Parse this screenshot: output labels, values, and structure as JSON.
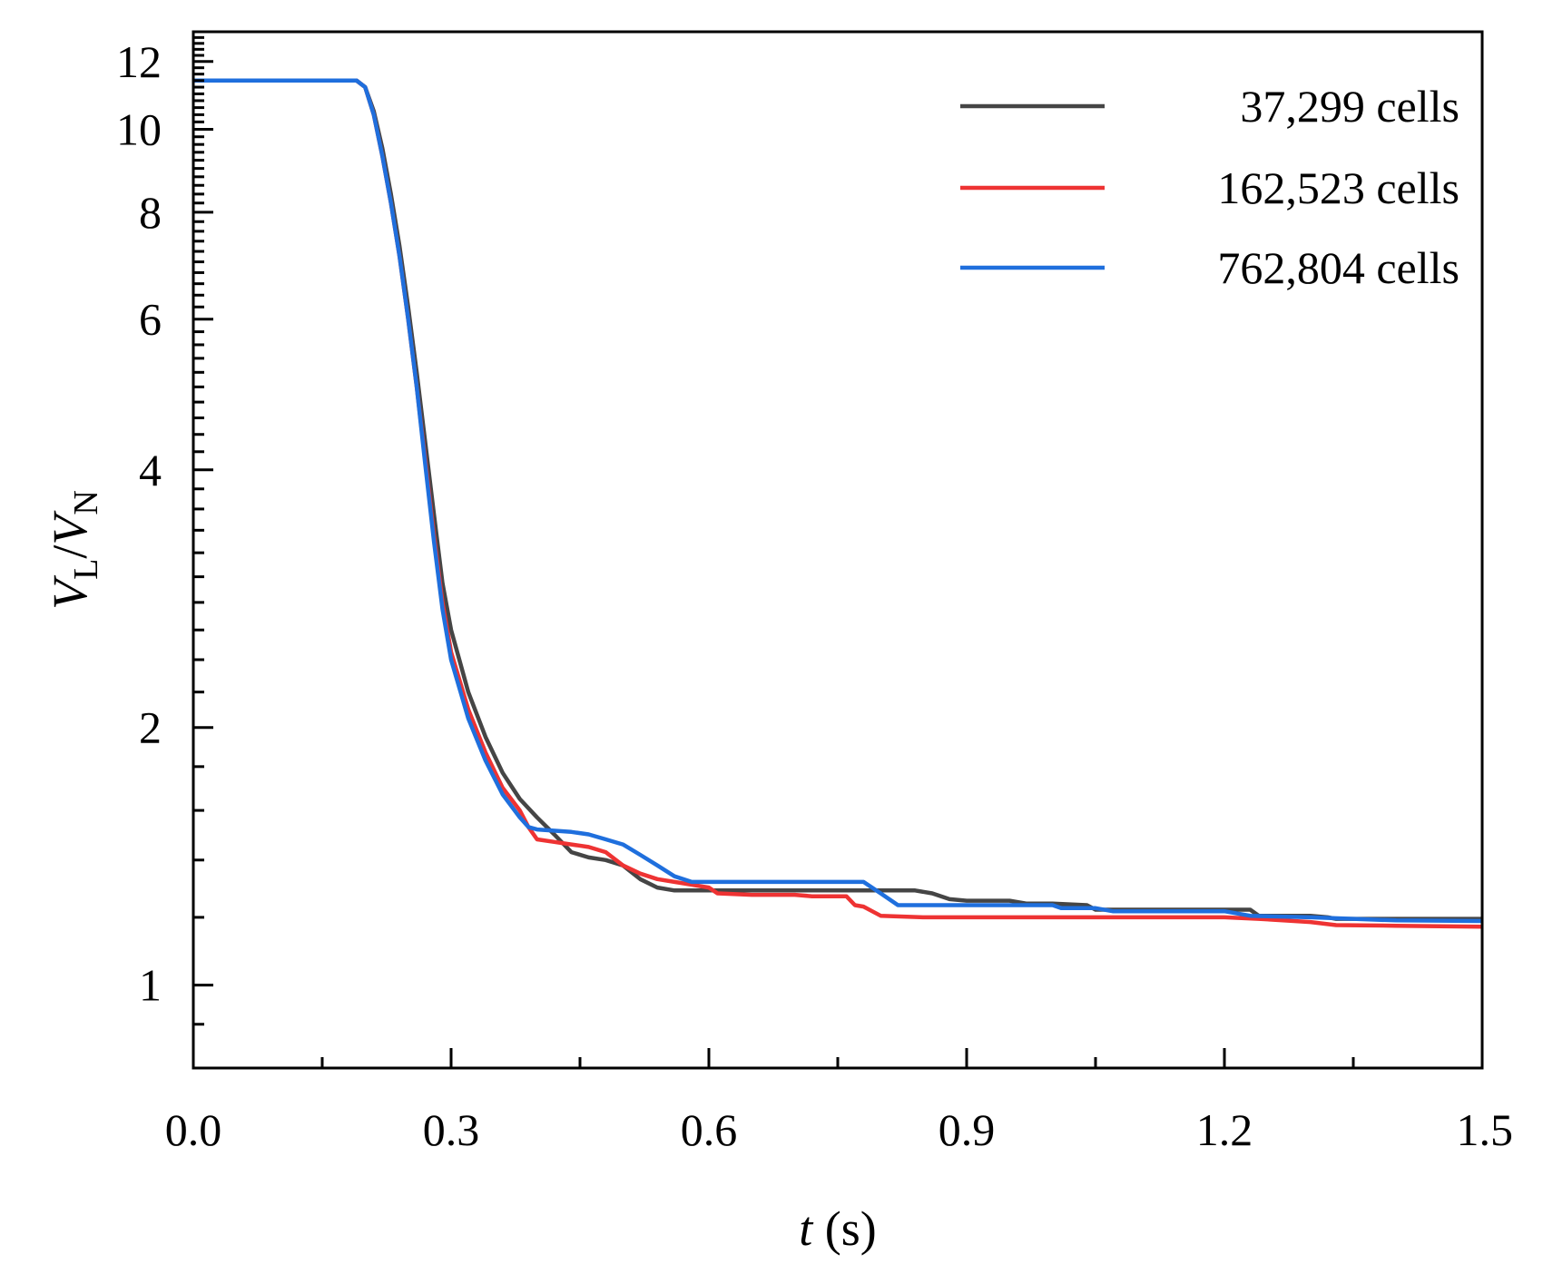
{
  "chart_data": {
    "type": "line",
    "title": "",
    "xlabel": {
      "var": "t",
      "unit": " (s)"
    },
    "ylabel": {
      "num": "V",
      "num_sub": "L",
      "sep": "/",
      "den": "V",
      "den_sub": "N"
    },
    "xlim": [
      0,
      1.5
    ],
    "ylim": [
      0.8,
      13
    ],
    "yscale": "log",
    "grid": false,
    "legend_position": "top-right",
    "x_ticks": [
      {
        "value": 0.0,
        "label": "0.0"
      },
      {
        "value": 0.3,
        "label": "0.3"
      },
      {
        "value": 0.6,
        "label": "0.6"
      },
      {
        "value": 0.9,
        "label": "0.9"
      },
      {
        "value": 1.2,
        "label": "1.2"
      },
      {
        "value": 1.5,
        "label": "1.5"
      }
    ],
    "x_minor_ticks": [
      0.15,
      0.45,
      0.75,
      1.05,
      1.35
    ],
    "y_ticks": [
      {
        "value": 1,
        "label": "1"
      },
      {
        "value": 2,
        "label": "2"
      },
      {
        "value": 4,
        "label": "4"
      },
      {
        "value": 6,
        "label": "6"
      },
      {
        "value": 8,
        "label": "8"
      },
      {
        "value": 10,
        "label": "10"
      },
      {
        "value": 12,
        "label": "12"
      }
    ],
    "y_minor_ticks": [
      0.9,
      1.2,
      1.4,
      1.6,
      1.8,
      2.2,
      2.4,
      2.6,
      2.8,
      3,
      3.2,
      3.4,
      3.6,
      3.8,
      4.2,
      4.4,
      4.6,
      4.8,
      5,
      5.2,
      5.4,
      5.6,
      5.8,
      6.2,
      6.4,
      6.6,
      6.8,
      7,
      7.2,
      7.4,
      7.6,
      7.8,
      8.2,
      8.4,
      8.6,
      8.8,
      9,
      9.2,
      9.4,
      9.6,
      9.8,
      10.2,
      10.4,
      10.6,
      10.8,
      11,
      11.2,
      11.4,
      11.6,
      11.8,
      12.2,
      12.4,
      12.6,
      12.8
    ],
    "series": [
      {
        "name": "37,299 cells",
        "legend_label": "37,299 cells",
        "color": "#454545",
        "points": [
          [
            0,
            11.4
          ],
          [
            0.19,
            11.4
          ],
          [
            0.2,
            11.2
          ],
          [
            0.21,
            10.5
          ],
          [
            0.22,
            9.5
          ],
          [
            0.23,
            8.4
          ],
          [
            0.24,
            7.3
          ],
          [
            0.25,
            6.2
          ],
          [
            0.26,
            5.2
          ],
          [
            0.27,
            4.3
          ],
          [
            0.28,
            3.55
          ],
          [
            0.29,
            2.95
          ],
          [
            0.3,
            2.6
          ],
          [
            0.32,
            2.2
          ],
          [
            0.34,
            1.95
          ],
          [
            0.36,
            1.77
          ],
          [
            0.38,
            1.65
          ],
          [
            0.4,
            1.57
          ],
          [
            0.42,
            1.5
          ],
          [
            0.44,
            1.43
          ],
          [
            0.46,
            1.41
          ],
          [
            0.48,
            1.4
          ],
          [
            0.5,
            1.38
          ],
          [
            0.52,
            1.33
          ],
          [
            0.54,
            1.3
          ],
          [
            0.56,
            1.29
          ],
          [
            0.6,
            1.29
          ],
          [
            0.7,
            1.29
          ],
          [
            0.8,
            1.29
          ],
          [
            0.84,
            1.29
          ],
          [
            0.86,
            1.28
          ],
          [
            0.88,
            1.26
          ],
          [
            0.9,
            1.255
          ],
          [
            0.95,
            1.255
          ],
          [
            0.97,
            1.245
          ],
          [
            1.0,
            1.245
          ],
          [
            1.04,
            1.24
          ],
          [
            1.05,
            1.225
          ],
          [
            1.1,
            1.225
          ],
          [
            1.2,
            1.225
          ],
          [
            1.23,
            1.225
          ],
          [
            1.24,
            1.205
          ],
          [
            1.3,
            1.205
          ],
          [
            1.32,
            1.2
          ],
          [
            1.33,
            1.195
          ],
          [
            1.4,
            1.195
          ],
          [
            1.5,
            1.195
          ]
        ]
      },
      {
        "name": "162,523 cells",
        "legend_label": "162,523 cells",
        "color": "#ee3333",
        "points": [
          [
            0,
            11.4
          ],
          [
            0.19,
            11.4
          ],
          [
            0.2,
            11.2
          ],
          [
            0.21,
            10.4
          ],
          [
            0.22,
            9.3
          ],
          [
            0.23,
            8.2
          ],
          [
            0.24,
            7.1
          ],
          [
            0.25,
            6.0
          ],
          [
            0.26,
            5.0
          ],
          [
            0.27,
            4.1
          ],
          [
            0.28,
            3.35
          ],
          [
            0.29,
            2.8
          ],
          [
            0.3,
            2.45
          ],
          [
            0.32,
            2.1
          ],
          [
            0.34,
            1.87
          ],
          [
            0.36,
            1.7
          ],
          [
            0.38,
            1.6
          ],
          [
            0.39,
            1.53
          ],
          [
            0.4,
            1.48
          ],
          [
            0.42,
            1.47
          ],
          [
            0.44,
            1.46
          ],
          [
            0.46,
            1.45
          ],
          [
            0.48,
            1.43
          ],
          [
            0.5,
            1.38
          ],
          [
            0.52,
            1.35
          ],
          [
            0.54,
            1.33
          ],
          [
            0.56,
            1.32
          ],
          [
            0.6,
            1.3
          ],
          [
            0.61,
            1.28
          ],
          [
            0.65,
            1.275
          ],
          [
            0.7,
            1.275
          ],
          [
            0.72,
            1.27
          ],
          [
            0.76,
            1.27
          ],
          [
            0.77,
            1.24
          ],
          [
            0.78,
            1.235
          ],
          [
            0.79,
            1.22
          ],
          [
            0.8,
            1.205
          ],
          [
            0.85,
            1.2
          ],
          [
            1.0,
            1.2
          ],
          [
            1.2,
            1.2
          ],
          [
            1.24,
            1.195
          ],
          [
            1.3,
            1.185
          ],
          [
            1.33,
            1.175
          ],
          [
            1.4,
            1.173
          ],
          [
            1.5,
            1.17
          ]
        ]
      },
      {
        "name": "762,804 cells",
        "legend_label": "762,804 cells",
        "color": "#1f6fdd",
        "points": [
          [
            0,
            11.4
          ],
          [
            0.19,
            11.4
          ],
          [
            0.2,
            11.2
          ],
          [
            0.21,
            10.4
          ],
          [
            0.22,
            9.3
          ],
          [
            0.23,
            8.2
          ],
          [
            0.24,
            7.1
          ],
          [
            0.25,
            6.0
          ],
          [
            0.26,
            5.0
          ],
          [
            0.27,
            4.05
          ],
          [
            0.28,
            3.3
          ],
          [
            0.29,
            2.75
          ],
          [
            0.3,
            2.4
          ],
          [
            0.32,
            2.05
          ],
          [
            0.34,
            1.83
          ],
          [
            0.36,
            1.67
          ],
          [
            0.38,
            1.57
          ],
          [
            0.39,
            1.53
          ],
          [
            0.4,
            1.52
          ],
          [
            0.44,
            1.51
          ],
          [
            0.46,
            1.5
          ],
          [
            0.48,
            1.48
          ],
          [
            0.5,
            1.46
          ],
          [
            0.52,
            1.42
          ],
          [
            0.54,
            1.38
          ],
          [
            0.56,
            1.34
          ],
          [
            0.58,
            1.32
          ],
          [
            0.6,
            1.32
          ],
          [
            0.7,
            1.32
          ],
          [
            0.78,
            1.32
          ],
          [
            0.8,
            1.28
          ],
          [
            0.82,
            1.24
          ],
          [
            0.85,
            1.24
          ],
          [
            1.0,
            1.24
          ],
          [
            1.01,
            1.23
          ],
          [
            1.05,
            1.23
          ],
          [
            1.07,
            1.22
          ],
          [
            1.2,
            1.22
          ],
          [
            1.23,
            1.205
          ],
          [
            1.3,
            1.2
          ],
          [
            1.4,
            1.19
          ],
          [
            1.5,
            1.188
          ]
        ]
      }
    ]
  }
}
